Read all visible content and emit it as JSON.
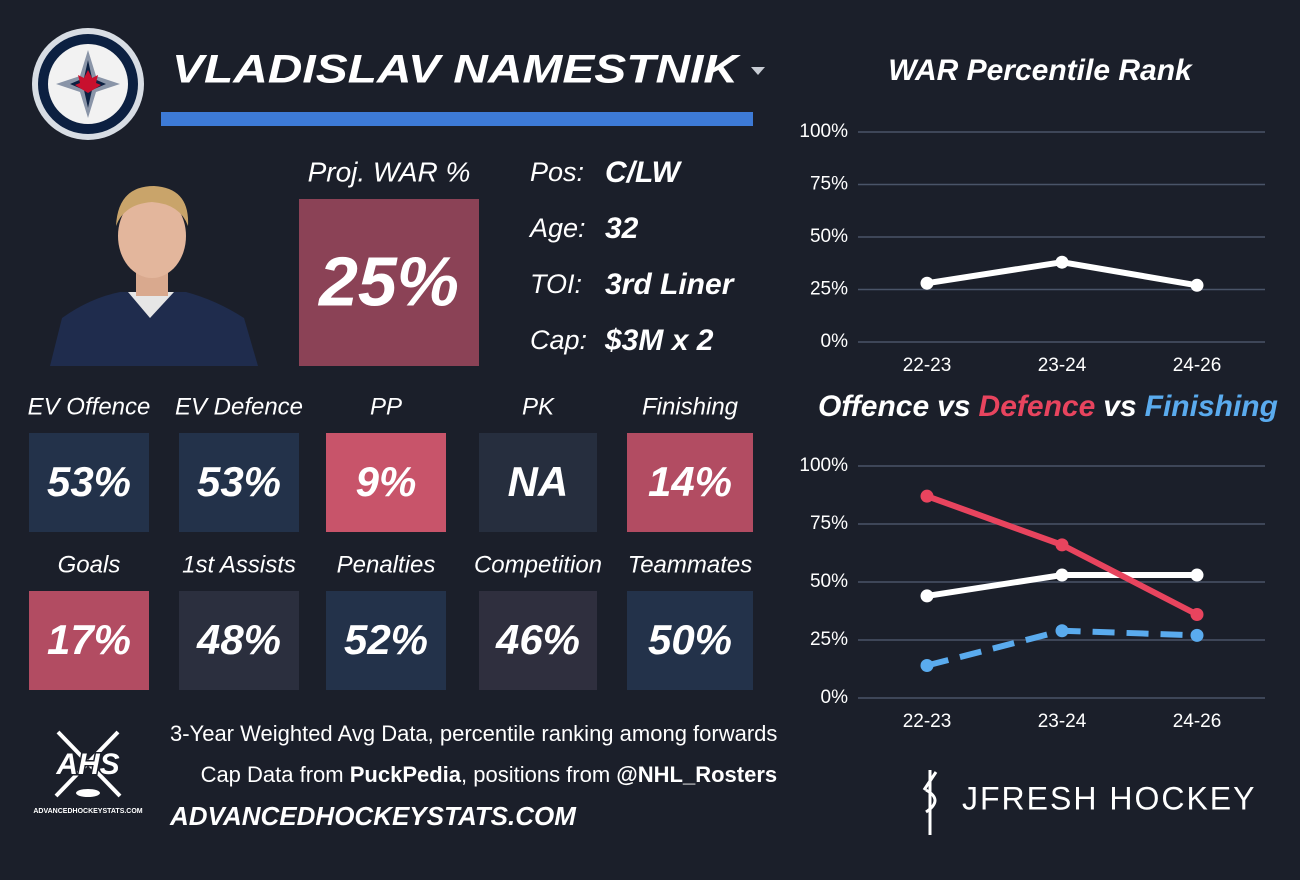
{
  "card": {
    "name": "VLADISLAV NAMESTNIK",
    "proj": {
      "label": "Proj. WAR %",
      "value": 25,
      "value_label": "25%",
      "color": "#8b4256"
    },
    "info": [
      {
        "label": "Pos:",
        "value": "C/LW"
      },
      {
        "label": "Age:",
        "value": 32
      },
      {
        "label": "TOI:",
        "value": "3rd Liner"
      },
      {
        "label": "Cap:",
        "value": "$3M x 2"
      }
    ],
    "stats": [
      {
        "label": "EV Offence",
        "value": 53,
        "value_label": "53%",
        "color": "#23324a"
      },
      {
        "label": "EV Defence",
        "value": 53,
        "value_label": "53%",
        "color": "#23324a"
      },
      {
        "label": "PP",
        "value": 9,
        "value_label": "9%",
        "color": "#c8546a"
      },
      {
        "label": "PK",
        "value": null,
        "value_label": "NA",
        "color": "#262e3e"
      },
      {
        "label": "Finishing",
        "value": 14,
        "value_label": "14%",
        "color": "#b24c62"
      },
      {
        "label": "Goals",
        "value": 17,
        "value_label": "17%",
        "color": "#b24c62"
      },
      {
        "label": "1st Assists",
        "value": 48,
        "value_label": "48%",
        "color": "#2b2f3e"
      },
      {
        "label": "Penalties",
        "value": 52,
        "value_label": "52%",
        "color": "#23324a"
      },
      {
        "label": "Competition",
        "value": 46,
        "value_label": "46%",
        "color": "#2f2f3e"
      },
      {
        "label": "Teammates",
        "value": 50,
        "value_label": "50%",
        "color": "#23324a"
      }
    ],
    "footer": {
      "note": "3-Year Weighted Avg Data, percentile ranking among forwards",
      "cap_parts": [
        "Cap Data from ",
        "PuckPedia",
        ", positions from ",
        "@NHL_Rosters"
      ],
      "site": "ADVANCEDHOCKEYSTATS.COM"
    },
    "ahs_logo": {
      "text": "AHS",
      "sub": "ADVANCEDHOCKEYSTATS.COM"
    },
    "brand": "JFRESH HOCKEY"
  },
  "chart_data": [
    {
      "type": "line",
      "title": "WAR Percentile Rank",
      "categories": [
        "22-23",
        "23-24",
        "24-26"
      ],
      "series": [
        {
          "name": "WAR",
          "color": "#ffffff",
          "values": [
            28,
            38,
            27
          ]
        }
      ],
      "ylim": [
        0,
        100
      ],
      "yticks": [
        {
          "value": 0,
          "label": "0%"
        },
        {
          "value": 25,
          "label": "25%"
        },
        {
          "value": 50,
          "label": "50%"
        },
        {
          "value": 75,
          "label": "75%"
        },
        {
          "value": 100,
          "label": "100%"
        }
      ],
      "grid": true
    },
    {
      "type": "line",
      "title_joiner": "vs",
      "categories": [
        "22-23",
        "23-24",
        "24-26"
      ],
      "series": [
        {
          "name": "Offence",
          "color": "#ffffff",
          "values": [
            44,
            53,
            53
          ]
        },
        {
          "name": "Defence",
          "color": "#e8445e",
          "values": [
            87,
            66,
            36
          ]
        },
        {
          "name": "Finishing",
          "color": "#5aabee",
          "values": [
            14,
            29,
            27
          ],
          "dashed": true
        }
      ],
      "ylim": [
        0,
        100
      ],
      "yticks": [
        {
          "value": 0,
          "label": "0%"
        },
        {
          "value": 25,
          "label": "25%"
        },
        {
          "value": 50,
          "label": "50%"
        },
        {
          "value": 75,
          "label": "75%"
        },
        {
          "value": 100,
          "label": "100%"
        }
      ],
      "grid": true
    }
  ]
}
